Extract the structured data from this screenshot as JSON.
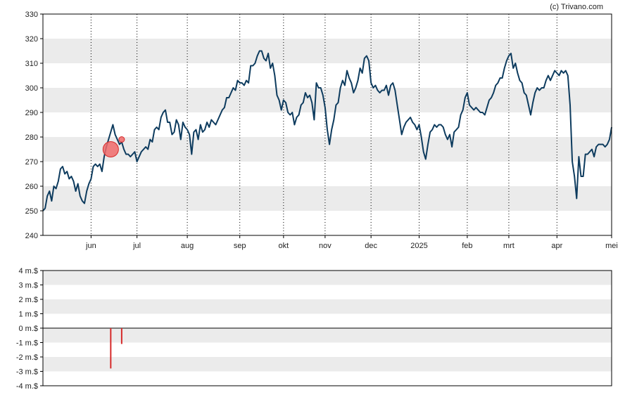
{
  "credit": "(c) Trivano.com",
  "colors": {
    "price_line": "#0d3b5e",
    "band": "#ebebeb",
    "marker_fill": "#f06a6a",
    "marker_stroke": "#d62a2a",
    "flow_bar": "#d62a2a",
    "axis": "#000000"
  },
  "chart_data": [
    {
      "type": "line",
      "title": "",
      "xlabel": "",
      "ylabel": "",
      "ylim": [
        240,
        330
      ],
      "y_ticks": [
        "240",
        "250",
        "260",
        "270",
        "280",
        "290",
        "300",
        "310",
        "320",
        "330"
      ],
      "x_tick_labels": [
        "jun",
        "jul",
        "aug",
        "sep",
        "okt",
        "nov",
        "dec",
        "2025",
        "feb",
        "mrt",
        "apr",
        "mei"
      ],
      "x_range_index": [
        0,
        260
      ],
      "x_tick_index": [
        22,
        43,
        66,
        90,
        110,
        129,
        150,
        172,
        194,
        213,
        235,
        260
      ],
      "grid": "vertical dotted at month ticks, alternating horizontal bands",
      "series": [
        {
          "values": [
            250,
            251,
            256,
            258,
            254,
            260,
            259,
            262,
            267,
            268,
            265,
            266,
            263,
            264,
            262,
            258,
            261,
            256,
            254,
            253,
            258,
            261,
            263,
            268,
            269,
            268,
            269,
            266,
            272,
            276,
            279,
            282,
            285,
            281,
            279,
            277,
            278,
            275,
            273,
            273,
            272,
            273,
            274,
            270,
            272,
            274,
            275,
            276,
            275,
            279,
            278,
            283,
            284,
            283,
            288,
            290,
            291,
            286,
            286,
            281,
            282,
            287,
            285,
            279,
            286,
            284,
            283,
            281,
            273,
            282,
            283,
            279,
            285,
            282,
            283,
            286,
            284,
            287,
            286,
            285,
            287,
            289,
            291,
            292,
            296,
            296,
            298,
            300,
            299,
            303,
            302,
            302,
            301,
            303,
            302,
            309,
            309,
            310,
            313,
            315,
            315,
            312,
            311,
            314,
            308,
            310,
            305,
            297,
            295,
            291,
            295,
            294,
            290,
            289,
            290,
            285,
            288,
            289,
            293,
            294,
            298,
            296,
            297,
            294,
            287,
            302,
            300,
            300,
            297,
            292,
            283,
            277,
            283,
            287,
            293,
            294,
            300,
            303,
            301,
            307,
            304,
            302,
            298,
            300,
            303,
            308,
            306,
            312,
            313,
            311,
            302,
            300,
            301,
            299,
            298,
            299,
            299,
            301,
            297,
            301,
            302,
            299,
            293,
            287,
            281,
            284,
            286,
            287,
            288,
            286,
            285,
            283,
            285,
            280,
            274,
            271,
            277,
            282,
            283,
            285,
            284,
            285,
            285,
            284,
            281,
            279,
            281,
            276,
            282,
            283,
            284,
            289,
            291,
            296,
            298,
            293,
            292,
            291,
            292,
            291,
            290,
            290,
            289,
            292,
            295,
            296,
            298,
            301,
            302,
            304,
            304,
            308,
            311,
            313,
            314,
            308,
            310,
            306,
            303,
            302,
            298,
            297,
            293,
            289,
            294,
            298,
            300,
            299,
            300,
            300,
            303,
            305,
            303,
            305,
            307,
            306,
            305,
            307,
            306,
            307,
            305,
            293,
            270,
            264,
            255,
            272,
            264,
            264,
            273,
            273,
            274,
            275,
            272,
            276,
            277,
            277,
            277,
            276,
            277,
            279,
            284
          ]
        }
      ],
      "markers": [
        {
          "x_index": 31,
          "y": 275,
          "size": "large"
        },
        {
          "x_index": 36,
          "y": 279,
          "size": "small"
        }
      ]
    },
    {
      "type": "bar",
      "title": "",
      "xlabel": "",
      "ylabel": "",
      "ylim": [
        -4,
        4
      ],
      "y_ticks": [
        "4 m.$",
        "3 m.$",
        "2 m.$",
        "1 m.$",
        "0 m.$",
        "-1 m.$",
        "-2 m.$",
        "-3 m.$",
        "-4 m.$"
      ],
      "bars": [
        {
          "x_index": 31,
          "value": -2.8
        },
        {
          "x_index": 36,
          "value": -1.1
        }
      ]
    }
  ]
}
